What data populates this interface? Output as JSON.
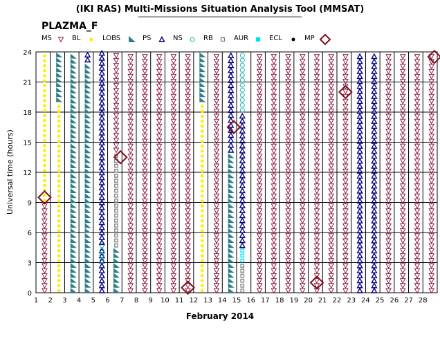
{
  "title": "(IKI RAS) Multi-Missions Situation Analysis Tool (MMSAT)",
  "subtitle": "PLAZMA_F",
  "legend": [
    {
      "label": "MS",
      "marker": "tri-down",
      "color": "#8b1a3a"
    },
    {
      "label": "BL",
      "marker": "dot",
      "color": "#ffee00"
    },
    {
      "label": "LOBS",
      "marker": "wedge",
      "color": "#2f7f86"
    },
    {
      "label": "PS",
      "marker": "tri-up",
      "color": "#00007f"
    },
    {
      "label": "NS",
      "marker": "circle",
      "color": "#22b5a8"
    },
    {
      "label": "RB",
      "marker": "square",
      "color": "#808080"
    },
    {
      "label": "AUR",
      "marker": "square",
      "color": "#00e0f0"
    },
    {
      "label": "ECL",
      "marker": "dot",
      "color": "#000000"
    },
    {
      "label": "MP",
      "marker": "diamond",
      "color": "#7b1020"
    }
  ],
  "chart_data": {
    "type": "scatter",
    "title": "(IKI RAS) Multi-Missions Situation Analysis Tool (MMSAT)",
    "subtitle": "PLAZMA_F",
    "xlabel": "February 2014",
    "ylabel": "Universal time (hours)",
    "xlim": [
      1,
      29
    ],
    "ylim": [
      0,
      24
    ],
    "x_ticks": [
      1,
      2,
      3,
      4,
      5,
      6,
      7,
      8,
      9,
      10,
      11,
      12,
      13,
      14,
      15,
      16,
      17,
      18,
      19,
      20,
      21,
      22,
      23,
      24,
      25,
      26,
      27,
      28
    ],
    "y_ticks": [
      0,
      3,
      6,
      9,
      12,
      15,
      18,
      21,
      24
    ],
    "grid": true,
    "columns": [
      {
        "day": 1.6,
        "segments": [
          [
            "MS",
            0,
            9
          ],
          [
            "BL",
            9,
            24
          ]
        ]
      },
      {
        "day": 2.6,
        "segments": [
          [
            "BL",
            0,
            19
          ],
          [
            "LOBS",
            19,
            24
          ]
        ]
      },
      {
        "day": 3.6,
        "segments": [
          [
            "LOBS",
            0,
            24
          ]
        ]
      },
      {
        "day": 4.6,
        "segments": [
          [
            "LOBS",
            0,
            23
          ],
          [
            "PS",
            23,
            24
          ]
        ]
      },
      {
        "day": 5.6,
        "segments": [
          [
            "PS",
            0,
            4.5
          ],
          [
            "NS",
            3,
            4.8
          ],
          [
            "PS",
            4.8,
            24
          ]
        ]
      },
      {
        "day": 6.6,
        "segments": [
          [
            "LOBS",
            0,
            4.5
          ],
          [
            "RB",
            4.5,
            14
          ],
          [
            "MS",
            14,
            24
          ]
        ]
      },
      {
        "day": 7.6,
        "segments": [
          [
            "MS",
            0,
            24
          ]
        ]
      },
      {
        "day": 8.6,
        "segments": [
          [
            "MS",
            0,
            24
          ]
        ]
      },
      {
        "day": 9.6,
        "segments": [
          [
            "MS",
            0,
            24
          ]
        ]
      },
      {
        "day": 10.6,
        "segments": [
          [
            "MS",
            0,
            24
          ]
        ]
      },
      {
        "day": 11.6,
        "segments": [
          [
            "MS",
            0,
            24
          ]
        ]
      },
      {
        "day": 12.6,
        "segments": [
          [
            "BL",
            0,
            19
          ],
          [
            "LOBS",
            19,
            24
          ]
        ]
      },
      {
        "day": 13.6,
        "segments": [
          [
            "MS",
            0,
            24
          ]
        ]
      },
      {
        "day": 14.6,
        "segments": [
          [
            "LOBS",
            0,
            14
          ],
          [
            "PS",
            14,
            24
          ]
        ]
      },
      {
        "day": 15.4,
        "segments": [
          [
            "RB",
            0,
            3
          ],
          [
            "AUR",
            3,
            4.5
          ],
          [
            "PS",
            4.5,
            18
          ],
          [
            "NS",
            18,
            24
          ]
        ]
      },
      {
        "day": 16.6,
        "segments": [
          [
            "MS",
            0,
            24
          ]
        ]
      },
      {
        "day": 17.6,
        "segments": [
          [
            "MS",
            0,
            24
          ]
        ]
      },
      {
        "day": 18.6,
        "segments": [
          [
            "MS",
            0,
            24
          ]
        ]
      },
      {
        "day": 19.6,
        "segments": [
          [
            "MS",
            0,
            24
          ]
        ]
      },
      {
        "day": 20.6,
        "segments": [
          [
            "MS",
            0,
            24
          ]
        ]
      },
      {
        "day": 21.6,
        "segments": [
          [
            "MS",
            0,
            24
          ]
        ]
      },
      {
        "day": 22.6,
        "segments": [
          [
            "MS",
            0,
            24
          ]
        ]
      },
      {
        "day": 23.6,
        "segments": [
          [
            "PS",
            0,
            24
          ]
        ]
      },
      {
        "day": 24.6,
        "segments": [
          [
            "PS",
            0,
            24
          ]
        ]
      },
      {
        "day": 25.6,
        "segments": [
          [
            "MS",
            0,
            24
          ]
        ]
      },
      {
        "day": 26.6,
        "segments": [
          [
            "MS",
            0,
            24
          ]
        ]
      },
      {
        "day": 27.6,
        "segments": [
          [
            "MS",
            0,
            24
          ]
        ]
      },
      {
        "day": 28.6,
        "segments": [
          [
            "MS",
            0,
            24
          ]
        ]
      }
    ],
    "mp_crossings": [
      {
        "day": 1.6,
        "hour": 9.5
      },
      {
        "day": 6.9,
        "hour": 13.5
      },
      {
        "day": 11.6,
        "hour": 0.5
      },
      {
        "day": 14.8,
        "hour": 16.5
      },
      {
        "day": 20.6,
        "hour": 1
      },
      {
        "day": 22.6,
        "hour": 20
      },
      {
        "day": 28.8,
        "hour": 23.5
      }
    ]
  }
}
